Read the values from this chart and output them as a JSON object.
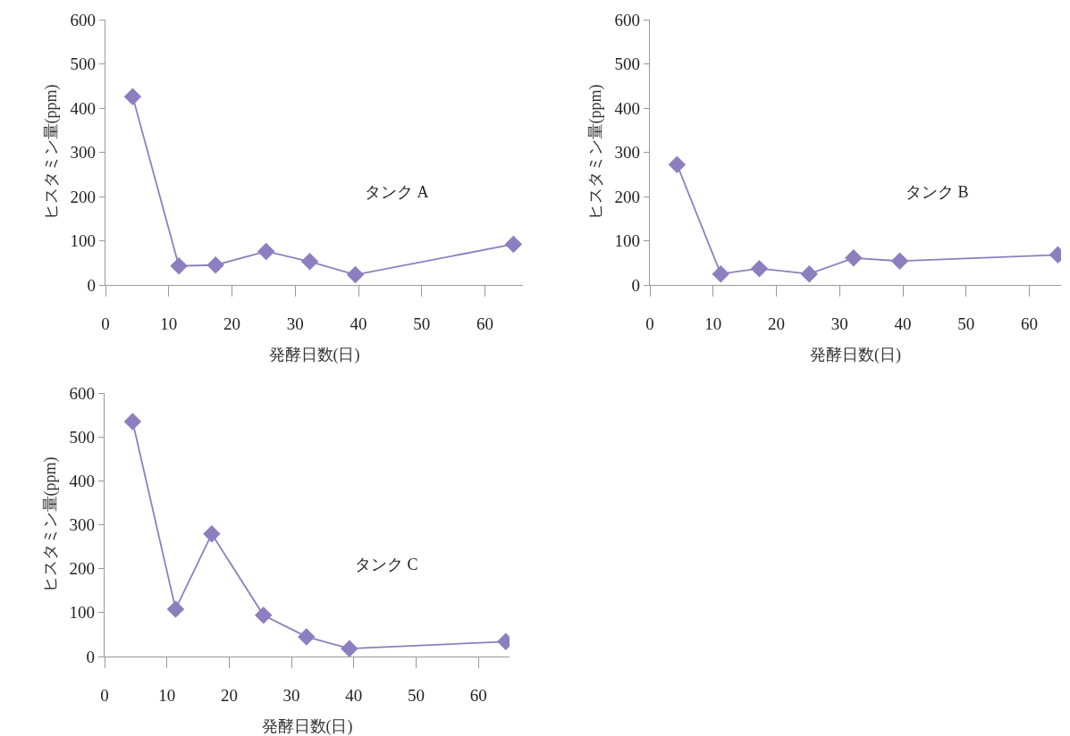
{
  "chart_data": [
    {
      "type": "line",
      "xlabel": "発酵日数(日)",
      "ylabel": "ヒスタミン量(ppm)",
      "x": [
        4.3,
        11.6,
        17.4,
        25.4,
        32.3,
        39.5,
        64.5
      ],
      "series": [
        {
          "name": "タンク A",
          "color": "#8c7fc0",
          "values": [
            426,
            43,
            45,
            76,
            53,
            23,
            92
          ]
        }
      ],
      "xlim": [
        0,
        66
      ],
      "xticks": [
        0,
        10,
        20,
        30,
        40,
        50,
        60
      ],
      "ylim": [
        0,
        600
      ],
      "yticks": [
        0,
        100,
        200,
        300,
        400,
        500,
        600
      ],
      "grid": false,
      "marker": "diamond",
      "line_style": "solid",
      "legend": false
    },
    {
      "type": "line",
      "xlabel": "発酵日数(日)",
      "ylabel": "ヒスタミン量(ppm)",
      "x": [
        4.3,
        11.2,
        17.3,
        25.2,
        32.2,
        39.5,
        64.5
      ],
      "series": [
        {
          "name": "タンク B",
          "color": "#8c7fc0",
          "values": [
            272,
            25,
            37,
            25,
            61,
            54,
            68
          ]
        }
      ],
      "xlim": [
        0,
        65
      ],
      "xticks": [
        0,
        10,
        20,
        30,
        40,
        50,
        60
      ],
      "ylim": [
        0,
        600
      ],
      "yticks": [
        0,
        100,
        200,
        300,
        400,
        500,
        600
      ],
      "grid": false,
      "marker": "diamond",
      "line_style": "solid",
      "legend": false
    },
    {
      "type": "line",
      "xlabel": "発酵日数(日)",
      "ylabel": "ヒスタミン量(ppm)",
      "x": [
        4.5,
        11.4,
        17.2,
        25.5,
        32.4,
        39.3,
        64.4
      ],
      "series": [
        {
          "name": "タンク C",
          "color": "#8c7fc0",
          "values": [
            535,
            108,
            279,
            94,
            45,
            18,
            34
          ]
        }
      ],
      "xlim": [
        0,
        65
      ],
      "xticks": [
        0,
        10,
        20,
        30,
        40,
        50,
        60
      ],
      "ylim": [
        0,
        600
      ],
      "yticks": [
        0,
        100,
        200,
        300,
        400,
        500,
        600
      ],
      "grid": false,
      "marker": "diamond",
      "line_style": "solid",
      "legend": false
    }
  ]
}
